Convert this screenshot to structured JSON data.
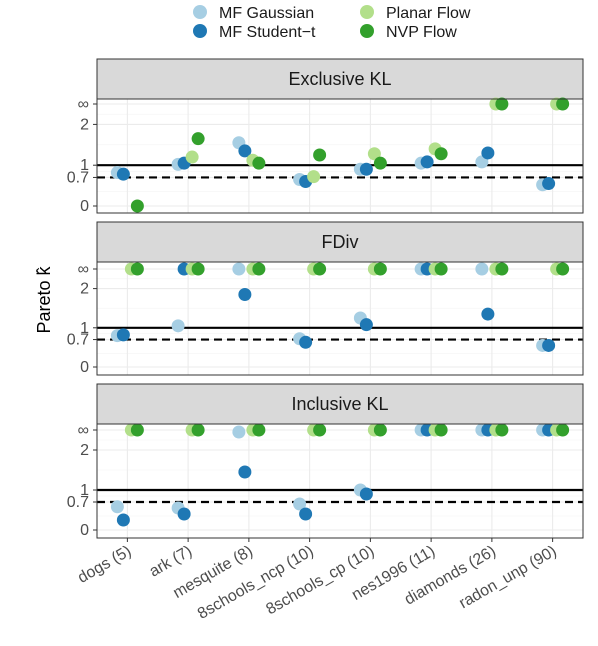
{
  "chart_data": {
    "type": "scatter",
    "ylabel": "Pareto k̂",
    "categories": [
      "dogs (5)",
      "ark (7)",
      "mesquite (8)",
      "8schools_ncp (10)",
      "8schools_cp (10)",
      "nes1996 (11)",
      "diamonds (26)",
      "radon_unp (90)"
    ],
    "y_ticks": [
      "0",
      "0.7",
      "1",
      "2",
      "∞"
    ],
    "y_tick_values": [
      0,
      0.7,
      1,
      2,
      2.5
    ],
    "reference_lines": [
      {
        "value": 1,
        "style": "solid"
      },
      {
        "value": 0.7,
        "style": "dashed"
      }
    ],
    "legend_position": "top",
    "grid": true,
    "series": [
      {
        "name": "MF Gaussian",
        "color": "#a6cee3"
      },
      {
        "name": "MF Student−t",
        "color": "#1f78b4"
      },
      {
        "name": "Planar Flow",
        "color": "#b2df8a"
      },
      {
        "name": "NVP Flow",
        "color": "#33a02c"
      }
    ],
    "facets": [
      {
        "title": "Exclusive KL",
        "values": [
          [
            0.82,
            0.78,
            null,
            0.0
          ],
          [
            1.02,
            1.05,
            1.2,
            1.65
          ],
          [
            1.55,
            1.35,
            1.12,
            1.05
          ],
          [
            0.65,
            0.6,
            0.72,
            1.25
          ],
          [
            0.9,
            0.9,
            1.28,
            1.05
          ],
          [
            1.05,
            1.08,
            1.4,
            1.28
          ],
          [
            1.08,
            1.3,
            2.5,
            2.5
          ],
          [
            0.52,
            0.55,
            2.5,
            2.5
          ]
        ]
      },
      {
        "title": "FDiv",
        "values": [
          [
            0.8,
            0.82,
            2.5,
            2.5
          ],
          [
            1.05,
            2.5,
            2.5,
            2.5
          ],
          [
            2.5,
            1.85,
            2.5,
            2.5
          ],
          [
            0.72,
            0.63,
            2.5,
            2.5
          ],
          [
            1.25,
            1.08,
            2.5,
            2.5
          ],
          [
            2.5,
            2.5,
            2.5,
            2.5
          ],
          [
            2.5,
            1.35,
            2.5,
            2.5
          ],
          [
            0.55,
            0.55,
            2.5,
            2.5
          ]
        ]
      },
      {
        "title": "Inclusive KL",
        "values": [
          [
            0.58,
            0.25,
            2.5,
            2.5
          ],
          [
            0.55,
            0.4,
            2.5,
            2.5
          ],
          [
            2.45,
            1.45,
            2.5,
            2.5
          ],
          [
            0.65,
            0.4,
            2.5,
            2.5
          ],
          [
            1.0,
            0.9,
            2.5,
            2.5
          ],
          [
            2.5,
            2.5,
            2.5,
            2.5
          ],
          [
            2.5,
            2.5,
            2.5,
            2.5
          ],
          [
            2.5,
            2.5,
            2.5,
            2.5
          ]
        ]
      }
    ]
  }
}
